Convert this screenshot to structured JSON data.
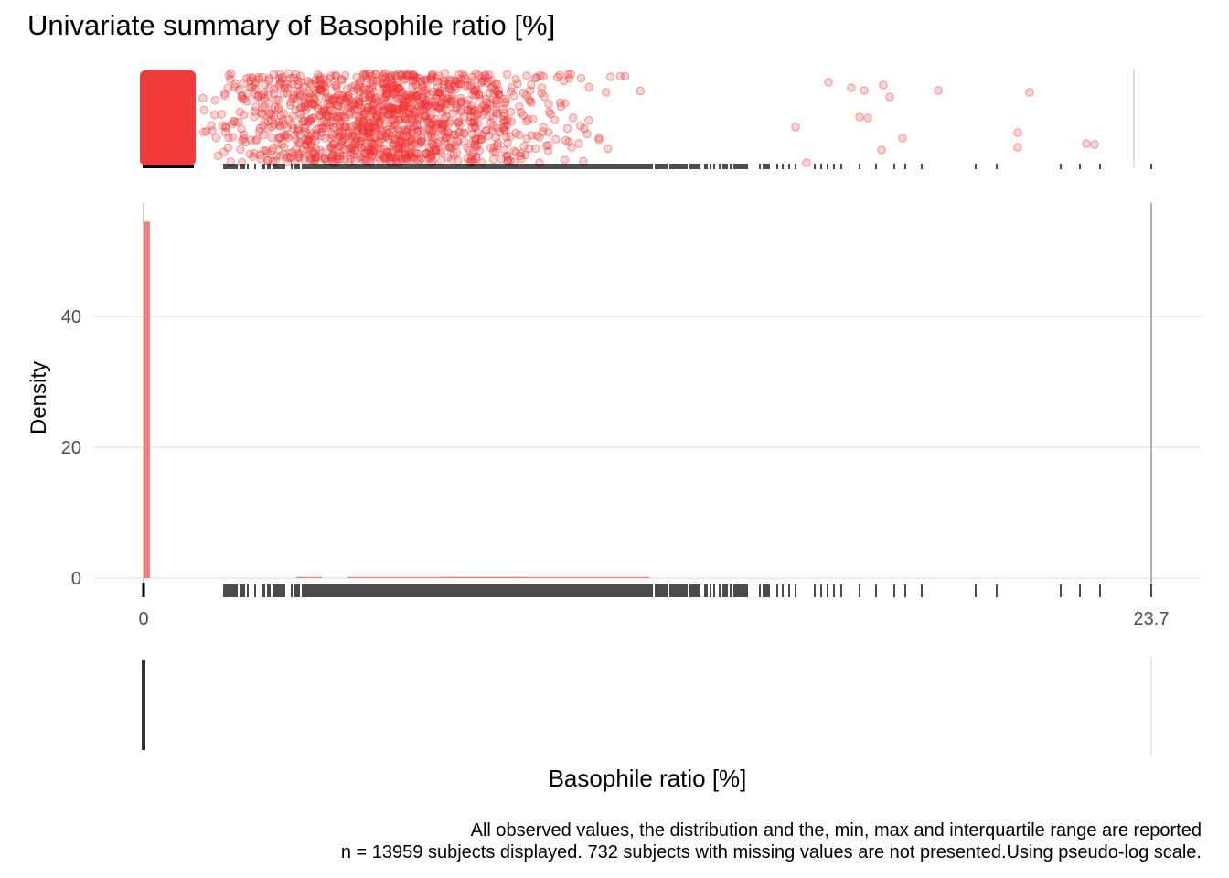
{
  "chart_data": {
    "type": "histogram",
    "title": "Univariate summary of Basophile ratio [%]",
    "xlabel": "Basophile ratio [%]",
    "ylabel": "Density",
    "x_tick_labels": [
      "0",
      "23.7"
    ],
    "y_tick_labels": [
      "0",
      "20",
      "40"
    ],
    "xlim": [
      0,
      23.7
    ],
    "ylim": [
      0,
      55
    ],
    "x_scale": "pseudo-log",
    "grid": true,
    "colors": {
      "accent": "#f03030",
      "bar": "#f08080",
      "rug": "#000000",
      "boxplot": "#333333",
      "grid": "#e5e5e5"
    },
    "histogram": {
      "bins": [
        {
          "x0": 0.0,
          "x1": 0.15,
          "density": 54.5
        },
        {
          "x0": 3.6,
          "x1": 4.2,
          "density": 0.1
        },
        {
          "x0": 4.8,
          "x1": 7.0,
          "density": 0.15
        },
        {
          "x0": 7.0,
          "x1": 9.0,
          "density": 0.2
        },
        {
          "x0": 9.0,
          "x1": 11.9,
          "density": 0.15
        }
      ]
    },
    "boxplot": {
      "min": 0,
      "q1": 0,
      "median": 0,
      "q3": 0,
      "max": 23.7
    },
    "jitter": {
      "description_values": "concentrated near 0, spread from ~1.6 to ~22.5"
    },
    "rug_range": [
      1.8,
      23.7
    ]
  },
  "captions": {
    "line1": "All observed values, the distribution and the, min, max and interquartile range are reported",
    "line2": "n = 13959 subjects displayed. 732 subjects with missing values are not presented.Using pseudo-log scale."
  }
}
